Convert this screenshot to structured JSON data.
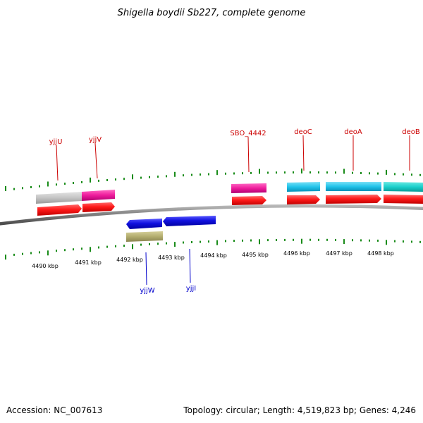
{
  "title": "Shigella boydii Sb227, complete genome",
  "footer": {
    "accession": "Accession: NC_007613",
    "summary": "Topology: circular; Length: 4,519,823 bp; Genes: 4,246"
  },
  "scale": {
    "labels": [
      "4490 kbp",
      "4491 kbp",
      "4492 kbp",
      "4493 kbp",
      "4494 kbp",
      "4495 kbp",
      "4496 kbp",
      "4497 kbp",
      "4498 kbp"
    ]
  },
  "genes": {
    "forward": [
      "yjjU",
      "yjjV",
      "SBO_4442",
      "deoC",
      "deoA",
      "deoB"
    ],
    "reverse": [
      "yjjW",
      "yjjI"
    ]
  },
  "colors": {
    "forward_label": "#cc0000",
    "reverse_label": "#0000cc",
    "cds": "#ff1a1a",
    "cds_reverse": "#1111e0",
    "backbone": "#808080",
    "tick": "#1a8c1a",
    "cog_gray": "#c4c4c4",
    "cog_pink": "#ee1c9c",
    "cog_cyan": "#22c4ea",
    "cog_teal": "#1ad0cc",
    "cog_olive": "#b3ad6e"
  }
}
